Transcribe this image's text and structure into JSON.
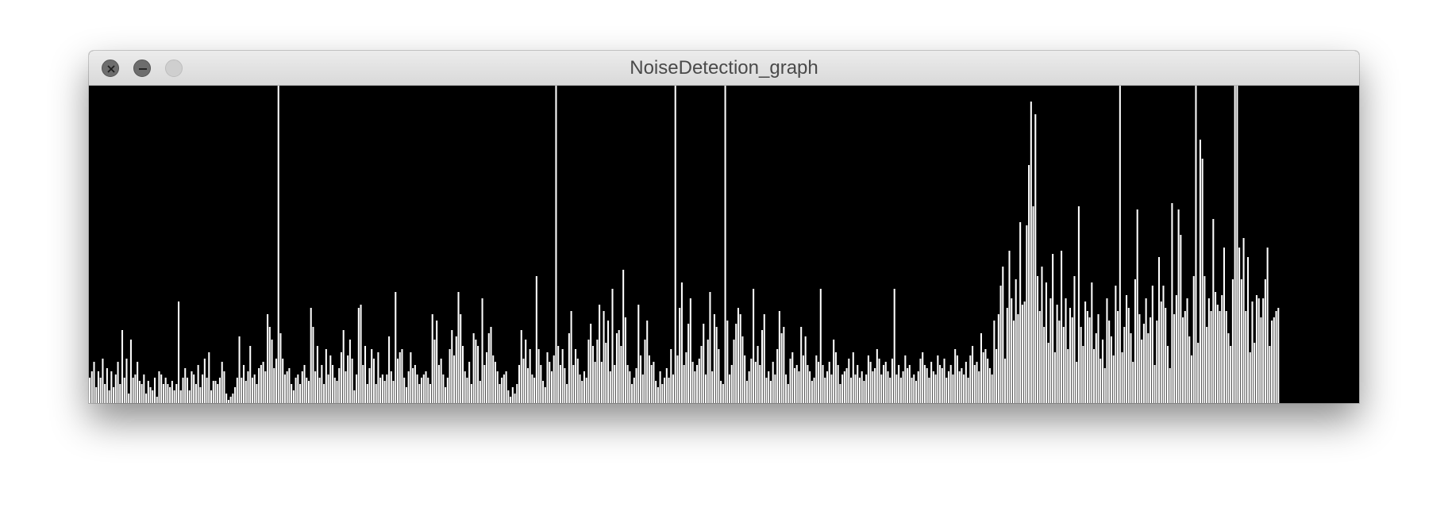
{
  "window": {
    "title": "NoiseDetection_graph"
  },
  "colors": {
    "background": "#000000",
    "bars": "#ffffff",
    "titlebar": "#e2e2e2"
  },
  "icons": {
    "close": "close-icon",
    "minimize": "minimize-icon",
    "zoom": "zoom-icon"
  },
  "chart_data": {
    "type": "bar",
    "ylim": [
      0,
      100
    ],
    "grid": false,
    "values_note_removed": true,
    "values": [
      8,
      10,
      13,
      5,
      10,
      8,
      14,
      6,
      11,
      4,
      10,
      5,
      9,
      13,
      6,
      23,
      8,
      14,
      3,
      20,
      8,
      9,
      13,
      7,
      6,
      9,
      3,
      7,
      5,
      4,
      8,
      2,
      10,
      9,
      6,
      8,
      6,
      5,
      7,
      4,
      6,
      32,
      4,
      8,
      11,
      8,
      4,
      10,
      9,
      6,
      12,
      5,
      9,
      14,
      8,
      16,
      4,
      7,
      7,
      6,
      8,
      13,
      10,
      3,
      1,
      2,
      3,
      5,
      8,
      21,
      8,
      12,
      7,
      10,
      18,
      8,
      9,
      6,
      11,
      12,
      13,
      10,
      28,
      24,
      20,
      11,
      14,
      100,
      22,
      14,
      9,
      10,
      11,
      6,
      4,
      8,
      9,
      6,
      10,
      12,
      8,
      7,
      30,
      24,
      10,
      18,
      8,
      12,
      6,
      17,
      9,
      15,
      12,
      8,
      7,
      11,
      16,
      23,
      10,
      15,
      20,
      14,
      4,
      9,
      30,
      31,
      12,
      18,
      6,
      11,
      17,
      14,
      6,
      16,
      8,
      9,
      7,
      9,
      21,
      10,
      7,
      35,
      14,
      16,
      17,
      8,
      5,
      10,
      16,
      11,
      12,
      9,
      6,
      8,
      9,
      10,
      8,
      6,
      28,
      20,
      26,
      12,
      14,
      9,
      5,
      8,
      17,
      23,
      15,
      21,
      35,
      28,
      18,
      10,
      8,
      13,
      6,
      22,
      20,
      18,
      7,
      33,
      12,
      16,
      22,
      24,
      15,
      13,
      10,
      6,
      8,
      9,
      10,
      4,
      2,
      5,
      3,
      6,
      12,
      23,
      14,
      20,
      11,
      17,
      9,
      8,
      40,
      17,
      12,
      7,
      5,
      16,
      13,
      10,
      15,
      100,
      18,
      12,
      17,
      11,
      6,
      22,
      29,
      12,
      17,
      14,
      9,
      7,
      10,
      8,
      20,
      25,
      18,
      13,
      20,
      31,
      13,
      29,
      19,
      26,
      10,
      36,
      12,
      22,
      23,
      18,
      42,
      27,
      12,
      10,
      6,
      8,
      11,
      31,
      15,
      9,
      20,
      26,
      15,
      12,
      13,
      7,
      5,
      10,
      6,
      8,
      11,
      8,
      17,
      9,
      100,
      15,
      30,
      38,
      12,
      16,
      25,
      33,
      13,
      10,
      12,
      14,
      18,
      25,
      9,
      20,
      35,
      10,
      28,
      24,
      17,
      7,
      6,
      100,
      26,
      9,
      12,
      20,
      25,
      30,
      28,
      21,
      15,
      7,
      10,
      14,
      36,
      13,
      18,
      12,
      23,
      28,
      8,
      10,
      7,
      13,
      9,
      17,
      29,
      22,
      24,
      9,
      6,
      14,
      16,
      11,
      12,
      10,
      24,
      15,
      21,
      12,
      10,
      7,
      8,
      15,
      13,
      36,
      12,
      8,
      10,
      13,
      9,
      20,
      16,
      12,
      6,
      9,
      10,
      11,
      14,
      8,
      16,
      9,
      12,
      8,
      10,
      7,
      9,
      15,
      13,
      10,
      11,
      17,
      14,
      9,
      12,
      13,
      10,
      8,
      14,
      36,
      9,
      12,
      8,
      10,
      15,
      11,
      12,
      8,
      9,
      7,
      10,
      14,
      16,
      12,
      11,
      8,
      13,
      10,
      9,
      15,
      12,
      11,
      14,
      8,
      10,
      12,
      9,
      17,
      15,
      10,
      11,
      9,
      13,
      8,
      15,
      18,
      12,
      13,
      10,
      22,
      16,
      17,
      14,
      11,
      9,
      26,
      17,
      28,
      37,
      43,
      14,
      30,
      48,
      33,
      26,
      39,
      28,
      57,
      31,
      32,
      56,
      75,
      95,
      62,
      91,
      40,
      29,
      43,
      24,
      38,
      19,
      33,
      47,
      16,
      31,
      26,
      48,
      24,
      33,
      17,
      30,
      27,
      40,
      13,
      62,
      24,
      18,
      32,
      29,
      27,
      38,
      17,
      22,
      28,
      14,
      20,
      11,
      33,
      26,
      21,
      15,
      37,
      29,
      100,
      16,
      24,
      34,
      30,
      22,
      13,
      39,
      61,
      28,
      20,
      25,
      33,
      22,
      27,
      37,
      12,
      26,
      46,
      32,
      37,
      30,
      18,
      11,
      63,
      28,
      34,
      61,
      53,
      27,
      29,
      33,
      21,
      15,
      40,
      100,
      19,
      83,
      77,
      40,
      24,
      33,
      29,
      58,
      35,
      31,
      29,
      34,
      49,
      29,
      22,
      18,
      39,
      100,
      100,
      49,
      39,
      52,
      29,
      46,
      16,
      32,
      19,
      34,
      33,
      27,
      33,
      39,
      49,
      18,
      26,
      27,
      29,
      30
    ]
  }
}
